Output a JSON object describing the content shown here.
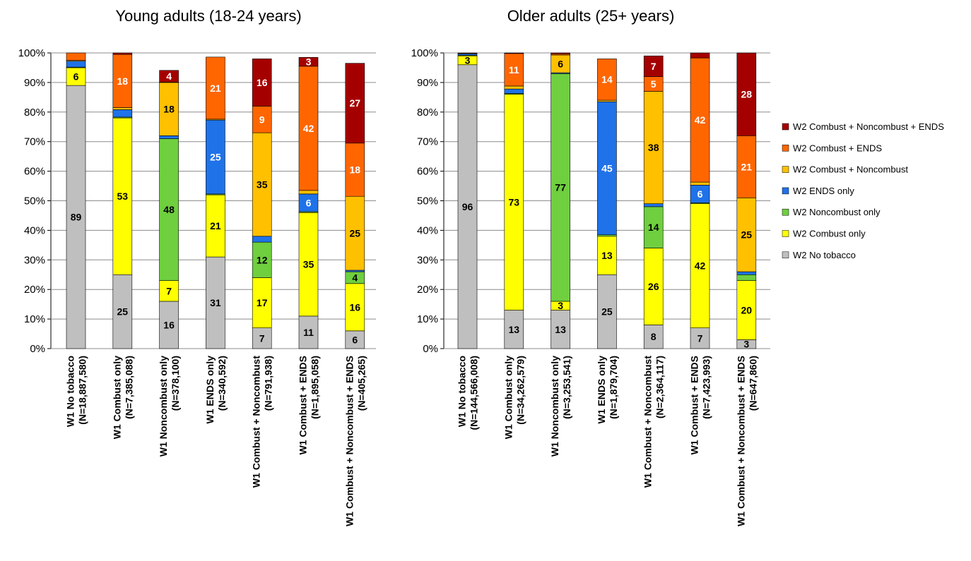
{
  "colors": {
    "W2 No tobacco": "#bfbfbf",
    "W2 Combust only": "#ffff00",
    "W2 Noncombust only": "#6fcf3f",
    "W2 ENDS only": "#1f72e8",
    "W2 Combust + Noncombust": "#ffc000",
    "W2 Combust + ENDS": "#ff6600",
    "W2 Combust + Noncombust + ENDS": "#a50000"
  },
  "chart_data": [
    {
      "type": "bar",
      "stacked": true,
      "title": "Young adults (18-24 years)",
      "y_ticks": [
        "0%",
        "10%",
        "20%",
        "30%",
        "40%",
        "50%",
        "60%",
        "70%",
        "80%",
        "90%",
        "100%"
      ],
      "ylim": [
        0,
        100
      ],
      "categories": [
        {
          "name": "W1 No tobacco",
          "n": "(N=18,887,580)"
        },
        {
          "name": "W1 Combust only",
          "n": "(N=7,385,088)"
        },
        {
          "name": "W1 Noncombust only",
          "n": "(N=378,100)"
        },
        {
          "name": "W1 ENDS only",
          "n": "(N=340,592)"
        },
        {
          "name": "W1 Combust + Noncombust",
          "n": "(N=791,938)"
        },
        {
          "name": "W1 Combust + ENDS",
          "n": "(N=1,895,058)"
        },
        {
          "name": "W1 Combust + Noncombust + ENDS",
          "n": "(N=405,265)"
        }
      ],
      "series": [
        {
          "name": "W2 No tobacco",
          "values": [
            89,
            25,
            16,
            31,
            7,
            11,
            6
          ],
          "labels": [
            "89",
            "25",
            "16",
            "31",
            "7",
            "11",
            "6"
          ]
        },
        {
          "name": "W2 Combust only",
          "values": [
            6,
            53,
            7,
            21,
            17,
            35,
            16
          ],
          "labels": [
            "6",
            "53",
            "7",
            "21",
            "17",
            "35",
            "16"
          ]
        },
        {
          "name": "W2 Noncombust only",
          "values": [
            0.2,
            0.3,
            48,
            0.3,
            12,
            0.3,
            4
          ],
          "labels": [
            "",
            "",
            "48",
            "",
            "12",
            "",
            "4"
          ]
        },
        {
          "name": "W2 ENDS only",
          "values": [
            2,
            2.5,
            1,
            25,
            2,
            6,
            0.5
          ],
          "labels": [
            "",
            "",
            "",
            "25",
            "",
            "6",
            ""
          ]
        },
        {
          "name": "W2 Combust + Noncombust",
          "values": [
            0.3,
            0.7,
            18,
            0.3,
            35,
            1.2,
            25
          ],
          "labels": [
            "",
            "",
            "18",
            "",
            "35",
            "",
            "25"
          ]
        },
        {
          "name": "W2 Combust + ENDS",
          "values": [
            2.5,
            18,
            0.1,
            21,
            9,
            42,
            18
          ],
          "labels": [
            "",
            "18",
            "",
            "21",
            "9",
            "42",
            "18"
          ]
        },
        {
          "name": "W2 Combust + Noncombust + ENDS",
          "values": [
            0,
            0.5,
            4,
            0,
            16,
            3,
            27
          ],
          "labels": [
            "",
            "",
            "4",
            "",
            "16",
            "3",
            "27"
          ]
        }
      ]
    },
    {
      "type": "bar",
      "stacked": true,
      "title": "Older adults (25+ years)",
      "y_ticks": [
        "0%",
        "10%",
        "20%",
        "30%",
        "40%",
        "50%",
        "60%",
        "70%",
        "80%",
        "90%",
        "100%"
      ],
      "ylim": [
        0,
        100
      ],
      "categories": [
        {
          "name": "W1 No tobacco",
          "n": "(N=144,566,008)"
        },
        {
          "name": "W1 Combust only",
          "n": "(N=34,262,579)"
        },
        {
          "name": "W1 Noncombust only",
          "n": "(N=3,253,541)"
        },
        {
          "name": "W1 ENDS only",
          "n": "(N=1,879,704)"
        },
        {
          "name": "W1 Combust + Noncombust",
          "n": "(N=2,364,117)"
        },
        {
          "name": "W1 Combust + ENDS",
          "n": "(N=7,423,993)"
        },
        {
          "name": "W1 Combust + Noncombust + ENDS",
          "n": "(N=647,860)"
        }
      ],
      "series": [
        {
          "name": "W2 No tobacco",
          "values": [
            96,
            13,
            13,
            25,
            8,
            7,
            3
          ],
          "labels": [
            "96",
            "13",
            "13",
            "25",
            "8",
            "7",
            "3"
          ]
        },
        {
          "name": "W2 Combust only",
          "values": [
            3,
            73,
            3,
            13,
            26,
            42,
            20
          ],
          "labels": [
            "3",
            "73",
            "3",
            "13",
            "26",
            "42",
            "20"
          ]
        },
        {
          "name": "W2 Noncombust only",
          "values": [
            0.2,
            0.3,
            77,
            0.5,
            14,
            0.3,
            2
          ],
          "labels": [
            "",
            "",
            "77",
            "",
            "14",
            "",
            ""
          ]
        },
        {
          "name": "W2 ENDS only",
          "values": [
            0.5,
            1.5,
            0.3,
            45,
            1,
            6,
            1
          ],
          "labels": [
            "",
            "",
            "",
            "45",
            "",
            "6",
            ""
          ]
        },
        {
          "name": "W2 Combust + Noncombust",
          "values": [
            0.1,
            1,
            6,
            0.5,
            38,
            1,
            25
          ],
          "labels": [
            "",
            "",
            "6",
            "",
            "38",
            "",
            "25"
          ]
        },
        {
          "name": "W2 Combust + ENDS",
          "values": [
            0.2,
            11,
            0.4,
            14,
            5,
            42,
            21
          ],
          "labels": [
            "",
            "11",
            "",
            "14",
            "5",
            "42",
            "21"
          ]
        },
        {
          "name": "W2 Combust + Noncombust + ENDS",
          "values": [
            0,
            0.2,
            0.3,
            0,
            7,
            1.7,
            28
          ],
          "labels": [
            "",
            "",
            "",
            "",
            "7",
            "",
            "28"
          ]
        }
      ]
    }
  ],
  "legend": {
    "placement": "right",
    "items": [
      "W2 Combust + Noncombust + ENDS",
      "W2 Combust + ENDS",
      "W2 Combust + Noncombust",
      "W2 ENDS only",
      "W2 Noncombust only",
      "W2 Combust only",
      "W2 No tobacco"
    ]
  }
}
